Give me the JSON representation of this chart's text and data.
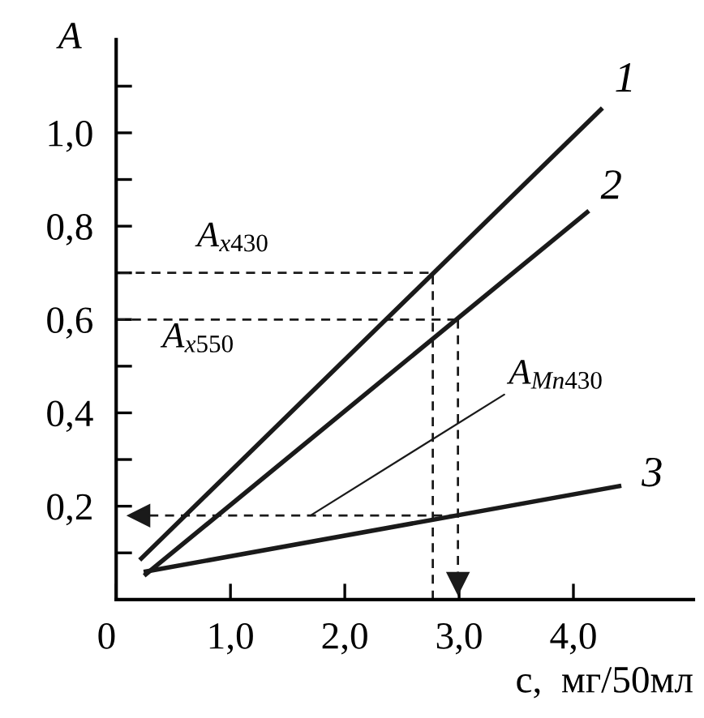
{
  "chart_data": {
    "type": "line",
    "xlabel": "c,  мг/50мл",
    "ylabel": "A",
    "xlim": [
      0,
      5.05
    ],
    "ylim": [
      0,
      1.2
    ],
    "xticks": [
      {
        "value": 0,
        "label": "0"
      },
      {
        "value": 1,
        "label": "1,0"
      },
      {
        "value": 2,
        "label": "2,0"
      },
      {
        "value": 3,
        "label": "3,0"
      },
      {
        "value": 4,
        "label": "4,0"
      }
    ],
    "yticks": [
      {
        "value": 0.1,
        "label": null
      },
      {
        "value": 0.2,
        "label": "0,2"
      },
      {
        "value": 0.3,
        "label": null
      },
      {
        "value": 0.4,
        "label": "0,4"
      },
      {
        "value": 0.5,
        "label": null
      },
      {
        "value": 0.6,
        "label": "0,6"
      },
      {
        "value": 0.7,
        "label": null
      },
      {
        "value": 0.8,
        "label": "0,8"
      },
      {
        "value": 0.9,
        "label": null
      },
      {
        "value": 1.0,
        "label": "1,0"
      },
      {
        "value": 1.1,
        "label": null
      }
    ],
    "grid": false,
    "legend": false,
    "series": [
      {
        "color": "#1a1a1a",
        "x": [
          0.22,
          4.24
        ],
        "values": [
          0.088,
          1.05
        ],
        "line_style": "solid"
      },
      {
        "color": "#1a1a1a",
        "x": [
          0.26,
          4.12
        ],
        "values": [
          0.054,
          0.83
        ],
        "line_style": "solid"
      },
      {
        "color": "#1a1a1a",
        "x": [
          0.26,
          4.4
        ],
        "values": [
          0.06,
          0.243
        ],
        "line_style": "solid"
      },
      {
        "color": "#1a1a1a",
        "x": [
          2.77,
          2.77,
          0
        ],
        "values": [
          0,
          0.7,
          0.7
        ],
        "line_style": "dashed"
      },
      {
        "color": "#1a1a1a",
        "x": [
          0,
          2.99
        ],
        "values": [
          0.6,
          0.6
        ],
        "line_style": "dashed"
      },
      {
        "color": "#1a1a1a",
        "x": [
          2.99,
          2.99
        ],
        "values": [
          0.6,
          0.035
        ],
        "line_style": "dashed",
        "marker": "triangle"
      },
      {
        "color": "#1a1a1a",
        "x": [
          2.99,
          0.2
        ],
        "values": [
          0.18,
          0.18
        ],
        "line_style": "dashed",
        "marker": "triangle"
      }
    ],
    "annotations": [
      {
        "text": "1",
        "x": 4.24,
        "y": 1.05
      },
      {
        "text": "2",
        "x": 4.12,
        "y": 0.83
      },
      {
        "text": "3",
        "x": 4.4,
        "y": 0.243
      },
      "A$_{x430}$",
      "A$_{x550}$",
      {
        "text": "A$_{Mn430}$",
        "x": 1.7,
        "y": 0.18
      }
    ]
  }
}
